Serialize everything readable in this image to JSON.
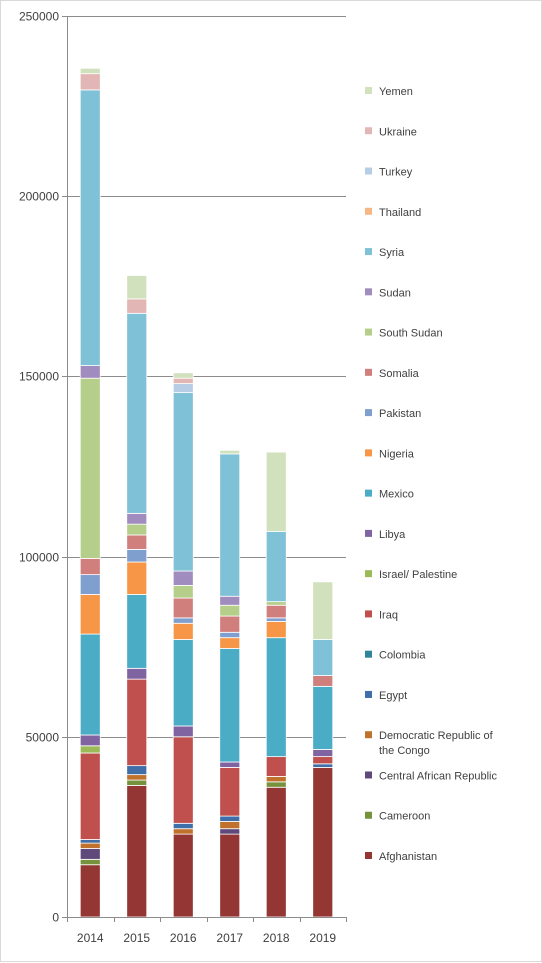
{
  "chart_data": {
    "type": "bar",
    "stacked": true,
    "categories": [
      "2014",
      "2015",
      "2016",
      "2017",
      "2018",
      "2019"
    ],
    "ylim": [
      0,
      250000
    ],
    "yticks": [
      0,
      50000,
      100000,
      150000,
      200000,
      250000
    ],
    "ytick_labels": [
      "0",
      "50000",
      "100000",
      "150000",
      "200000",
      "250000"
    ],
    "grid": true,
    "legend_position": "right",
    "series": [
      {
        "name": "Afghanistan",
        "color": "#943634",
        "values": [
          14500,
          36500,
          23000,
          23000,
          36000,
          41500
        ]
      },
      {
        "name": "Cameroon",
        "color": "#76923c",
        "values": [
          1500,
          1500,
          0,
          0,
          1500,
          0
        ]
      },
      {
        "name": "Central African Republic",
        "color": "#5f497a",
        "values": [
          3000,
          0,
          0,
          1500,
          0,
          0
        ]
      },
      {
        "name": "Democratic Republic of the Congo",
        "color": "#c0722d",
        "values": [
          1500,
          1500,
          1500,
          2000,
          1500,
          0
        ]
      },
      {
        "name": "Egypt",
        "color": "#3f6ea8",
        "values": [
          1000,
          2500,
          1500,
          1500,
          0,
          1000
        ]
      },
      {
        "name": "Colombia",
        "color": "#31849b",
        "values": [
          0,
          0,
          0,
          0,
          0,
          0
        ]
      },
      {
        "name": "Iraq",
        "color": "#c0504d",
        "values": [
          24000,
          24000,
          24000,
          13500,
          5500,
          2000
        ]
      },
      {
        "name": "Israel/ Palestine",
        "color": "#9bbb59",
        "values": [
          2000,
          0,
          0,
          0,
          0,
          0
        ]
      },
      {
        "name": "Libya",
        "color": "#8064a2",
        "values": [
          3000,
          3000,
          3000,
          1500,
          0,
          2000
        ]
      },
      {
        "name": "Mexico",
        "color": "#4bacc6",
        "values": [
          28000,
          20500,
          24000,
          31500,
          33000,
          17500
        ]
      },
      {
        "name": "Nigeria",
        "color": "#f79646",
        "values": [
          11000,
          9000,
          4500,
          3000,
          4500,
          0
        ]
      },
      {
        "name": "Pakistan",
        "color": "#7f9fcf",
        "values": [
          5500,
          3500,
          1500,
          1500,
          1000,
          0
        ]
      },
      {
        "name": "Somalia",
        "color": "#d07f7d",
        "values": [
          4500,
          4000,
          5500,
          4500,
          3500,
          3000
        ]
      },
      {
        "name": "South Sudan",
        "color": "#b5cf8a",
        "values": [
          50000,
          3000,
          3500,
          3000,
          1000,
          0
        ]
      },
      {
        "name": "Sudan",
        "color": "#a08cbe",
        "values": [
          3500,
          3000,
          4000,
          2500,
          0,
          0
        ]
      },
      {
        "name": "Syria",
        "color": "#7fc1d6",
        "values": [
          76500,
          55500,
          49500,
          39500,
          19500,
          10000
        ]
      },
      {
        "name": "Thailand",
        "color": "#f7b784",
        "values": [
          0,
          0,
          0,
          0,
          0,
          0
        ]
      },
      {
        "name": "Turkey",
        "color": "#b7cde6",
        "values": [
          0,
          0,
          2500,
          0,
          0,
          0
        ]
      },
      {
        "name": "Ukraine",
        "color": "#e2b6b5",
        "values": [
          4500,
          4000,
          1500,
          0,
          0,
          0
        ]
      },
      {
        "name": "Yemen",
        "color": "#d2e1bd",
        "values": [
          1500,
          6500,
          1500,
          1000,
          22000,
          16000
        ]
      }
    ]
  }
}
